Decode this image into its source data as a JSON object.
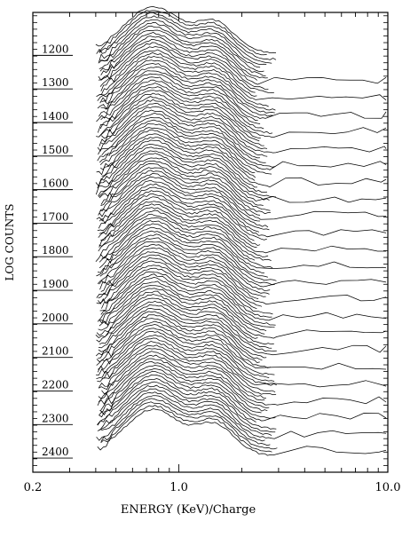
{
  "chart_data": {
    "type": "line",
    "title": "",
    "xlabel": "ENERGY (KeV)/Charge",
    "ylabel": "LOG COUNTS",
    "x_scale": "log",
    "xlim": [
      0.2,
      10.0
    ],
    "ylim": [
      2450,
      1080
    ],
    "x_ticks": [
      {
        "value": 0.2,
        "label": "0.2"
      },
      {
        "value": 1.0,
        "label": "1.0"
      },
      {
        "value": 10.0,
        "label": "10.0"
      }
    ],
    "spectrum_labels": [
      "1200",
      "1300",
      "1400",
      "1500",
      "1600",
      "1700",
      "1800",
      "1900",
      "2000",
      "2100",
      "2200",
      "2300",
      "2400"
    ],
    "grid": false,
    "legend": "none",
    "series_style": {
      "color": "#000000",
      "stacked_offset_per_spectrum": 10,
      "spectrum_range": [
        1200,
        2400
      ]
    },
    "spectrum_shape": {
      "peak1_energy": 0.75,
      "peak2_energy": 1.5,
      "valley_energy": 1.08,
      "low_energy_cutoff": 0.4,
      "high_energy_cutoff": 2.7,
      "flat_tail_every_n": 5
    }
  }
}
